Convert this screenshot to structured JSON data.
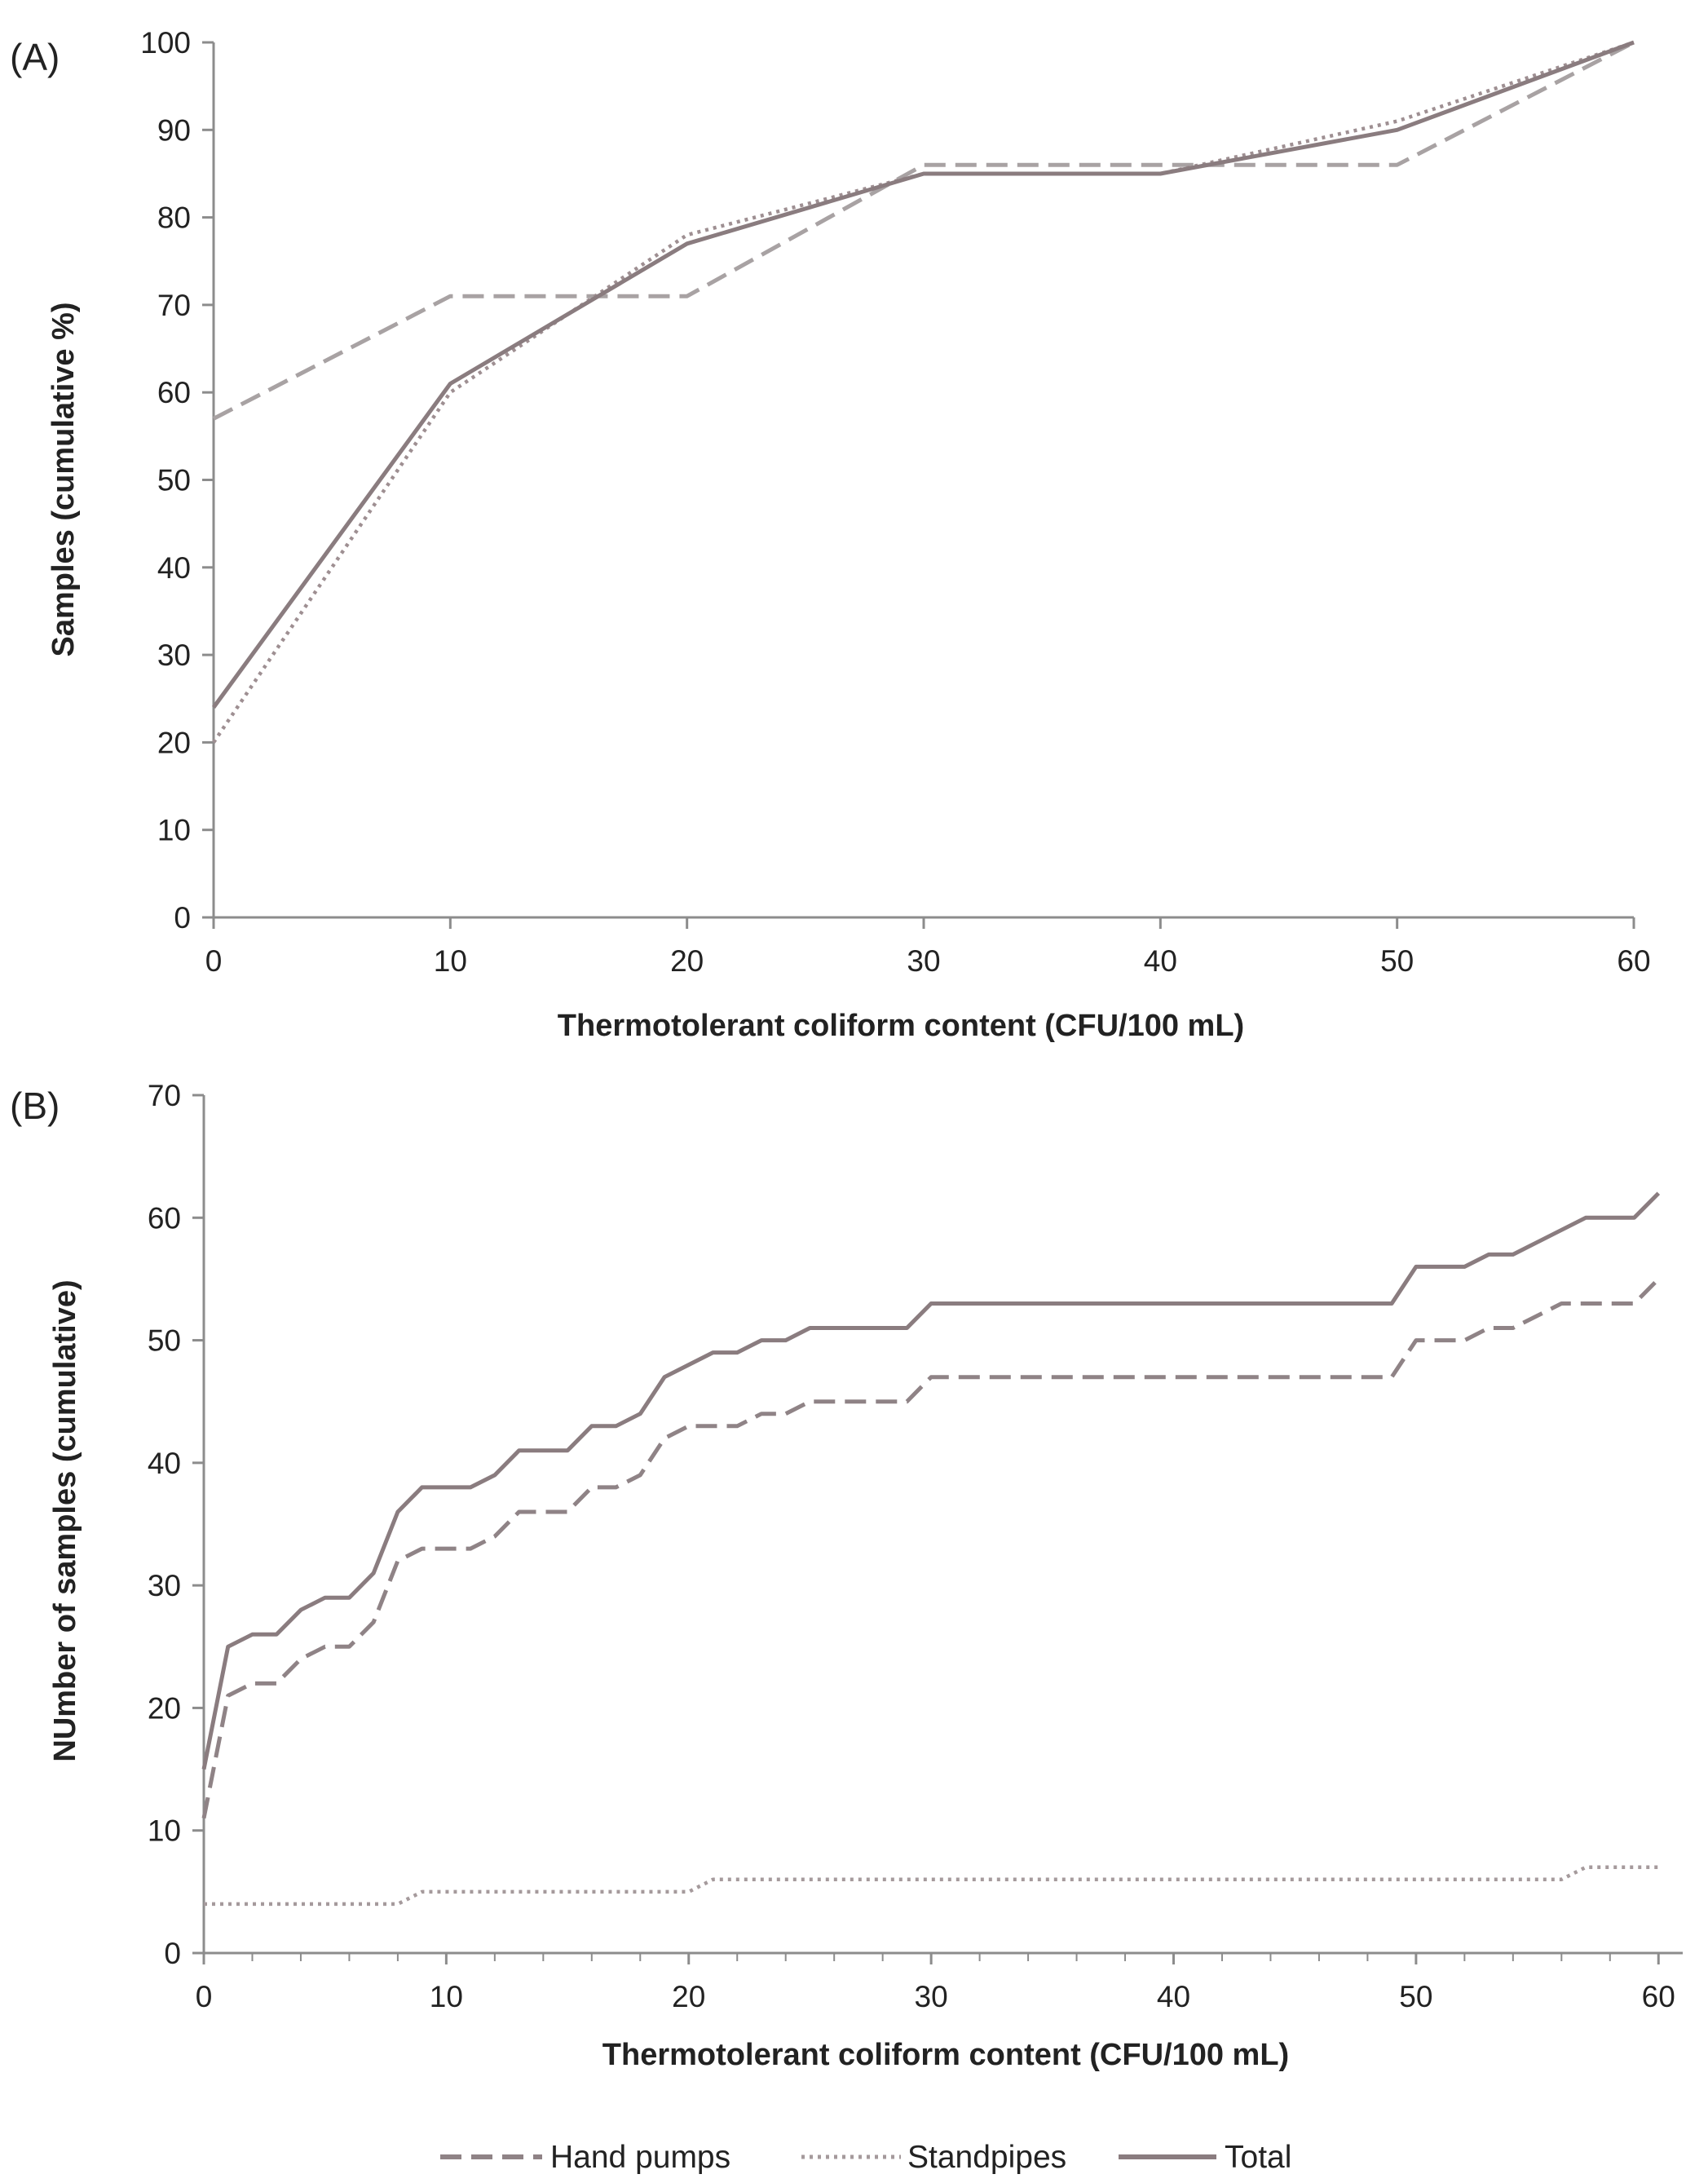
{
  "chart_data": [
    {
      "panel_label": "(A)",
      "type": "line",
      "xlabel": "Thermotolerant coliform content (CFU/100 mL)",
      "ylabel": "Samples (cumulative %)",
      "xlim": [
        0,
        60
      ],
      "ylim": [
        0,
        100
      ],
      "xticks": [
        0,
        10,
        20,
        30,
        40,
        50,
        60
      ],
      "yticks": [
        0,
        10,
        20,
        30,
        40,
        50,
        60,
        70,
        80,
        90,
        100
      ],
      "grid": false,
      "series": [
        {
          "name": "Hand pumps",
          "style": "dashed",
          "color": "#a8a2a3",
          "x": [
            0,
            10,
            20,
            30,
            40,
            50,
            60
          ],
          "values": [
            57,
            71,
            71,
            86,
            86,
            86,
            100
          ]
        },
        {
          "name": "Standpipes",
          "style": "dotted",
          "color": "#9e8f92",
          "x": [
            0,
            10,
            20,
            30,
            40,
            50,
            60
          ],
          "values": [
            20,
            60,
            78,
            85,
            85,
            91,
            100
          ]
        },
        {
          "name": "Total",
          "style": "solid",
          "color": "#8a7c7f",
          "x": [
            0,
            10,
            20,
            30,
            40,
            50,
            60
          ],
          "values": [
            24,
            61,
            77,
            85,
            85,
            90,
            100
          ]
        }
      ]
    },
    {
      "panel_label": "(B)",
      "type": "line",
      "xlabel": "Thermotolerant coliform content (CFU/100 mL)",
      "ylabel": "NUmber of samples (cumulative)",
      "xlim": [
        0,
        61
      ],
      "ylim": [
        0,
        70
      ],
      "xticks": [
        0,
        10,
        20,
        30,
        40,
        50,
        60
      ],
      "yticks": [
        0,
        10,
        20,
        30,
        40,
        50,
        60,
        70
      ],
      "grid": false,
      "series": [
        {
          "name": "Hand pumps",
          "style": "dashed",
          "color": "#8f8386",
          "x": [
            0,
            1,
            2,
            3,
            4,
            5,
            6,
            7,
            8,
            9,
            10,
            11,
            12,
            13,
            14,
            15,
            16,
            17,
            18,
            19,
            20,
            21,
            22,
            23,
            24,
            25,
            26,
            27,
            28,
            29,
            30,
            49,
            50,
            51,
            52,
            53,
            54,
            55,
            56,
            57,
            58,
            59,
            60
          ],
          "values": [
            11,
            21,
            22,
            22,
            24,
            25,
            25,
            27,
            32,
            33,
            33,
            33,
            34,
            36,
            36,
            36,
            38,
            38,
            39,
            42,
            43,
            43,
            43,
            44,
            44,
            45,
            45,
            45,
            45,
            45,
            47,
            47,
            50,
            50,
            50,
            51,
            51,
            52,
            53,
            53,
            53,
            53,
            55
          ]
        },
        {
          "name": "Standpipes",
          "style": "dotted",
          "color": "#a59a9c",
          "x": [
            0,
            8,
            9,
            20,
            21,
            56,
            57,
            60
          ],
          "values": [
            4,
            4,
            5,
            5,
            6,
            6,
            7,
            7
          ]
        },
        {
          "name": "Total",
          "style": "solid",
          "color": "#8a7c7f",
          "x": [
            0,
            1,
            2,
            3,
            4,
            5,
            6,
            7,
            8,
            9,
            10,
            11,
            12,
            13,
            14,
            15,
            16,
            17,
            18,
            19,
            20,
            21,
            22,
            23,
            24,
            25,
            26,
            27,
            28,
            29,
            30,
            49,
            50,
            51,
            52,
            53,
            54,
            55,
            56,
            57,
            58,
            59,
            60
          ],
          "values": [
            15,
            25,
            26,
            26,
            28,
            29,
            29,
            31,
            36,
            38,
            38,
            38,
            39,
            41,
            41,
            41,
            43,
            43,
            44,
            47,
            48,
            49,
            49,
            50,
            50,
            51,
            51,
            51,
            51,
            51,
            53,
            53,
            56,
            56,
            56,
            57,
            57,
            58,
            59,
            60,
            60,
            60,
            62
          ]
        }
      ]
    }
  ],
  "legend": {
    "position": "bottom-center",
    "items": [
      {
        "label": "Hand pumps",
        "style": "dashed"
      },
      {
        "label": "Standpipes",
        "style": "dotted"
      },
      {
        "label": "Total",
        "style": "solid"
      }
    ]
  }
}
